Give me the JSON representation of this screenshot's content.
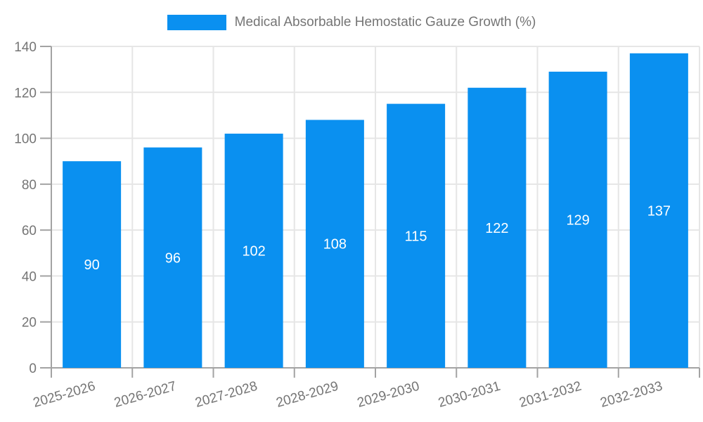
{
  "chart_data": {
    "type": "bar",
    "title": "",
    "legend": "Medical Absorbable Hemostatic Gauze Growth (%)",
    "legend_position": "top-center",
    "categories": [
      "2025-2026",
      "2026-2027",
      "2027-2028",
      "2028-2029",
      "2029-2030",
      "2030-2031",
      "2031-2032",
      "2032-2033"
    ],
    "values": [
      90,
      96,
      102,
      108,
      115,
      122,
      129,
      137
    ],
    "value_labels": [
      "90",
      "96",
      "102",
      "108",
      "115",
      "122",
      "129",
      "137"
    ],
    "xlabel": "",
    "ylabel": "",
    "ylim": [
      0,
      140
    ],
    "ytick_step": 20,
    "yticks": [
      "0",
      "20",
      "40",
      "60",
      "80",
      "100",
      "120",
      "140"
    ],
    "grid": true,
    "colors": {
      "bar": "#0a90f0",
      "axis_text": "#757575",
      "gridline": "#e6e6e6",
      "axis_line": "#a3a3a3",
      "value_label": "#ffffff",
      "background": "#ffffff"
    }
  }
}
